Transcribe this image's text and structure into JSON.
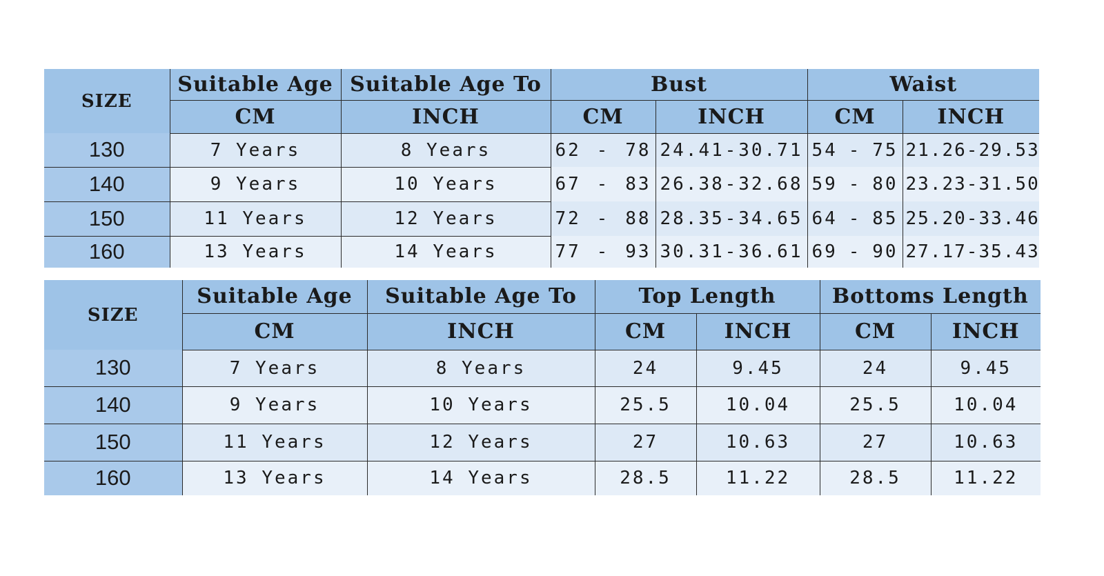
{
  "top_table": {
    "headers": {
      "size": "SIZE",
      "suitable_age": "Suitable Age",
      "suitable_age_to": "Suitable Age To",
      "bust": "Bust",
      "waist": "Waist",
      "cm": "CM",
      "inch": "INCH"
    },
    "rows": [
      {
        "size": "130",
        "age": "7 Years",
        "age_to": "8 Years",
        "bust_cm": [
          "62",
          "-",
          "78"
        ],
        "bust_inch": [
          "24.41",
          "-",
          "30.71"
        ],
        "waist_cm": [
          "54",
          "-",
          "75"
        ],
        "waist_inch": [
          "21.26",
          "-",
          "29.53"
        ]
      },
      {
        "size": "140",
        "age": "9 Years",
        "age_to": "10 Years",
        "bust_cm": [
          "67",
          "-",
          "83"
        ],
        "bust_inch": [
          "26.38",
          "-",
          "32.68"
        ],
        "waist_cm": [
          "59",
          "-",
          "80"
        ],
        "waist_inch": [
          "23.23",
          "-",
          "31.50"
        ]
      },
      {
        "size": "150",
        "age": "11 Years",
        "age_to": "12 Years",
        "bust_cm": [
          "72",
          "-",
          "88"
        ],
        "bust_inch": [
          "28.35",
          "-",
          "34.65"
        ],
        "waist_cm": [
          "64",
          "-",
          "85"
        ],
        "waist_inch": [
          "25.20",
          "-",
          "33.46"
        ]
      },
      {
        "size": "160",
        "age": "13 Years",
        "age_to": "14 Years",
        "bust_cm": [
          "77",
          "-",
          "93"
        ],
        "bust_inch": [
          "30.31",
          "-",
          "36.61"
        ],
        "waist_cm": [
          "69",
          "-",
          "90"
        ],
        "waist_inch": [
          "27.17",
          "-",
          "35.43"
        ]
      }
    ]
  },
  "bottom_table": {
    "headers": {
      "size": "SIZE",
      "suitable_age": "Suitable Age",
      "suitable_age_to": "Suitable Age To",
      "top_length": "Top Length",
      "bottoms_length": "Bottoms Length",
      "cm": "CM",
      "inch": "INCH"
    },
    "rows": [
      {
        "size": "130",
        "age": "7 Years",
        "age_to": "8 Years",
        "top_cm": "24",
        "top_inch": "9.45",
        "bottoms_cm": "24",
        "bottoms_inch": "9.45"
      },
      {
        "size": "140",
        "age": "9 Years",
        "age_to": "10 Years",
        "top_cm": "25.5",
        "top_inch": "10.04",
        "bottoms_cm": "25.5",
        "bottoms_inch": "10.04"
      },
      {
        "size": "150",
        "age": "11 Years",
        "age_to": "12 Years",
        "top_cm": "27",
        "top_inch": "10.63",
        "bottoms_cm": "27",
        "bottoms_inch": "10.63"
      },
      {
        "size": "160",
        "age": "13 Years",
        "age_to": "14 Years",
        "top_cm": "28.5",
        "top_inch": "11.22",
        "bottoms_cm": "28.5",
        "bottoms_inch": "11.22"
      }
    ]
  },
  "colors": {
    "header_bg": "#9ec3e7",
    "size_col_bg": "#a9c9ea",
    "cell_bg_a": "#dde9f6",
    "cell_bg_b": "#e8f0f9",
    "grid_line": "#2a2a2a"
  }
}
